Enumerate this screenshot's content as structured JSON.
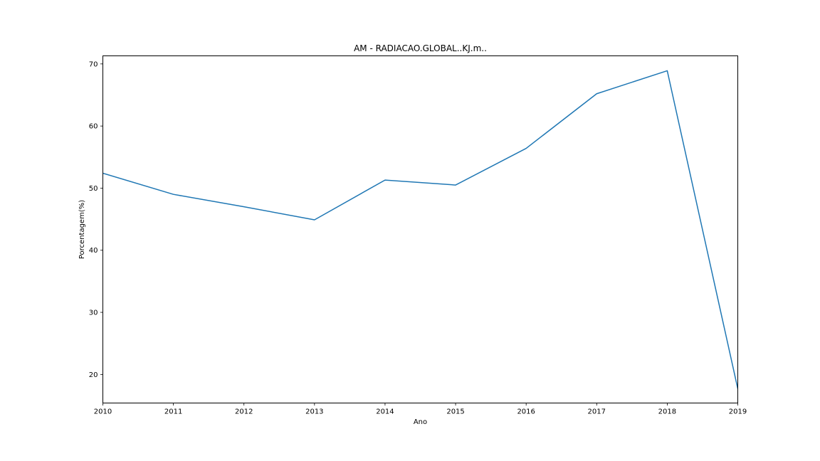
{
  "chart_data": {
    "type": "line",
    "title": "AM - RADIACAO.GLOBAL..KJ.m..",
    "xlabel": "Ano",
    "ylabel": "Porcentagem(%)",
    "x": [
      2010,
      2011,
      2012,
      2013,
      2014,
      2015,
      2016,
      2017,
      2018,
      2019
    ],
    "series": [
      {
        "values": [
          52.4,
          49.0,
          47.0,
          44.9,
          51.3,
          50.5,
          56.4,
          65.2,
          68.9,
          17.7
        ]
      }
    ],
    "xlim": [
      2010,
      2019
    ],
    "ylim": [
      15.4,
      71.3
    ],
    "xticks": [
      "2010",
      "2011",
      "2012",
      "2013",
      "2014",
      "2015",
      "2016",
      "2017",
      "2018",
      "2019"
    ],
    "yticks": [
      "20",
      "30",
      "40",
      "50",
      "60",
      "70"
    ],
    "line_color": "#1f77b4",
    "grid": false,
    "legend": "none"
  }
}
